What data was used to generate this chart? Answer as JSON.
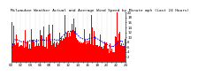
{
  "title": "Milwaukee Weather Actual and Average Wind Speed by Minute mph (Last 24 Hours)",
  "n_points": 1440,
  "ylim": [
    0,
    20
  ],
  "yticks": [
    2,
    4,
    6,
    8,
    10,
    12,
    14,
    16,
    18,
    20
  ],
  "bar_color": "#ff0000",
  "avg_color": "#0000ee",
  "bg_color": "#ffffff",
  "grid_color": "#999999",
  "title_fontsize": 3.2,
  "tick_fontsize": 2.8,
  "seed": 42
}
